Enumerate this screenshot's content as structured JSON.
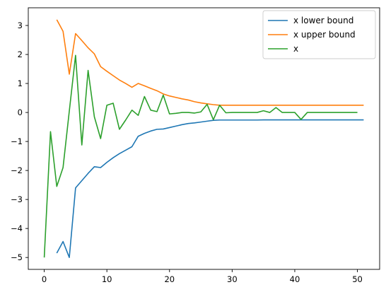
{
  "chart_data": {
    "type": "line",
    "title": "",
    "xlabel": "",
    "ylabel": "",
    "xlim": [
      -2.55,
      53.55
    ],
    "ylim": [
      -5.41,
      3.61
    ],
    "xticks": [
      0,
      10,
      20,
      30,
      40,
      50
    ],
    "yticks": [
      -5,
      -4,
      -3,
      -2,
      -1,
      0,
      1,
      2,
      3
    ],
    "xtick_labels": [
      "0",
      "10",
      "20",
      "30",
      "40",
      "50"
    ],
    "ytick_labels": [
      "−5",
      "−4",
      "−3",
      "−2",
      "−1",
      "0",
      "1",
      "2",
      "3"
    ],
    "grid": false,
    "legend_position": "top-right",
    "series": [
      {
        "name": "x lower bound",
        "color": "#1f77b4",
        "x": [
          2,
          3,
          4,
          5,
          6,
          7,
          8,
          9,
          10,
          11,
          12,
          13,
          14,
          15,
          16,
          17,
          18,
          19,
          20,
          21,
          22,
          23,
          24,
          25,
          26,
          27,
          28,
          29,
          30,
          31,
          32,
          33,
          34,
          35,
          36,
          37,
          38,
          39,
          40,
          41,
          42,
          43,
          44,
          45,
          46,
          47,
          48,
          49,
          50,
          51
        ],
        "y": [
          -4.85,
          -4.45,
          -5.0,
          -2.6,
          -2.35,
          -2.1,
          -1.87,
          -1.9,
          -1.72,
          -1.56,
          -1.42,
          -1.3,
          -1.18,
          -0.82,
          -0.72,
          -0.64,
          -0.58,
          -0.57,
          -0.52,
          -0.47,
          -0.42,
          -0.38,
          -0.36,
          -0.33,
          -0.3,
          -0.27,
          -0.26,
          -0.26,
          -0.26,
          -0.26,
          -0.26,
          -0.26,
          -0.26,
          -0.255,
          -0.255,
          -0.255,
          -0.255,
          -0.255,
          -0.255,
          -0.255,
          -0.255,
          -0.255,
          -0.255,
          -0.255,
          -0.255,
          -0.255,
          -0.255,
          -0.255,
          -0.255,
          -0.255
        ]
      },
      {
        "name": "x upper bound",
        "color": "#ff7f0e",
        "x": [
          2,
          3,
          4,
          5,
          6,
          7,
          8,
          9,
          10,
          11,
          12,
          13,
          14,
          15,
          16,
          17,
          18,
          19,
          20,
          21,
          22,
          23,
          24,
          25,
          26,
          27,
          28,
          29,
          30,
          31,
          32,
          33,
          34,
          35,
          36,
          37,
          38,
          39,
          40,
          41,
          42,
          43,
          44,
          45,
          46,
          47,
          48,
          49,
          50,
          51
        ],
        "y": [
          3.2,
          2.8,
          1.32,
          2.72,
          2.48,
          2.23,
          2.02,
          1.58,
          1.42,
          1.27,
          1.12,
          1.0,
          0.87,
          1.0,
          0.92,
          0.83,
          0.75,
          0.64,
          0.57,
          0.52,
          0.47,
          0.43,
          0.37,
          0.33,
          0.3,
          0.27,
          0.25,
          0.25,
          0.25,
          0.25,
          0.25,
          0.25,
          0.25,
          0.25,
          0.25,
          0.25,
          0.25,
          0.25,
          0.25,
          0.25,
          0.25,
          0.25,
          0.25,
          0.25,
          0.25,
          0.25,
          0.25,
          0.25,
          0.25,
          0.25
        ]
      },
      {
        "name": "x",
        "color": "#2ca02c",
        "x": [
          0,
          1,
          2,
          3,
          4,
          5,
          6,
          7,
          8,
          9,
          10,
          11,
          12,
          13,
          14,
          15,
          16,
          17,
          18,
          19,
          20,
          21,
          22,
          23,
          24,
          25,
          26,
          27,
          28,
          29,
          30,
          31,
          32,
          33,
          34,
          35,
          36,
          37,
          38,
          39,
          40,
          41,
          42,
          43,
          44,
          45,
          46,
          47,
          48,
          49,
          50
        ],
        "y": [
          -5.0,
          -0.66,
          -2.55,
          -1.9,
          0.05,
          1.97,
          -1.12,
          1.45,
          -0.15,
          -0.9,
          0.25,
          0.32,
          -0.58,
          -0.26,
          0.08,
          -0.1,
          0.55,
          0.08,
          0.03,
          0.6,
          -0.05,
          -0.03,
          0.0,
          0.0,
          -0.02,
          0.02,
          0.28,
          -0.25,
          0.25,
          -0.01,
          0.0,
          0.0,
          0.0,
          0.0,
          0.0,
          0.06,
          0.0,
          0.17,
          0.0,
          0.0,
          0.0,
          -0.24,
          0.0,
          0.0,
          0.0,
          0.0,
          0.0,
          0.0,
          0.0,
          0.0,
          0.0
        ]
      }
    ]
  }
}
